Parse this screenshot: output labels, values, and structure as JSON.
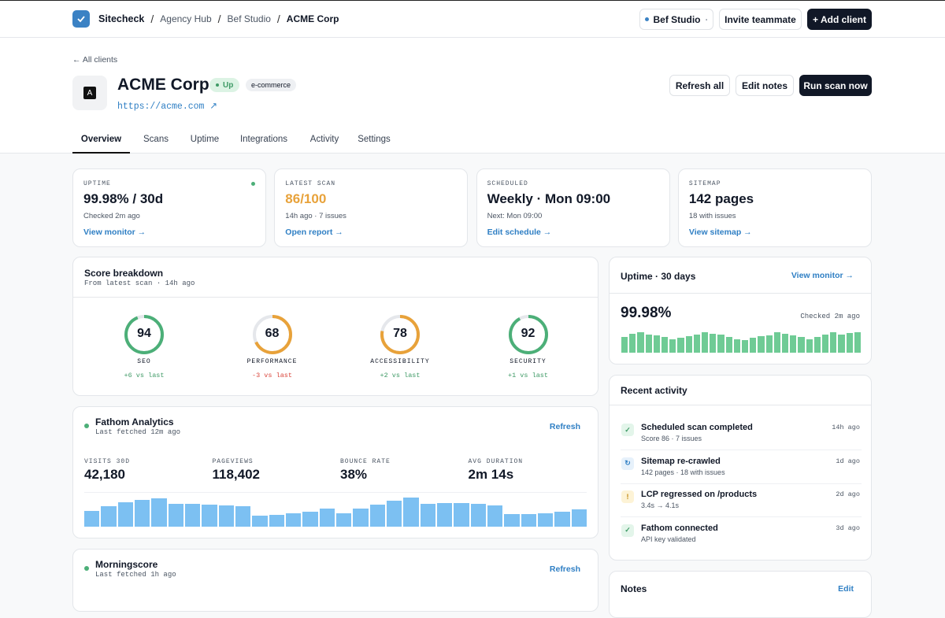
{
  "nav": {
    "brand": "Sitecheck",
    "separator": "/",
    "breadcrumbs": [
      "Agency Hub",
      "Bef Studio",
      "ACME Corp"
    ],
    "workspace": "Bef Studio",
    "workspace_caret": "·",
    "invite": "Invite teammate",
    "add_client": "+ Add client"
  },
  "back_link": "← All clients",
  "client": {
    "logo": "A",
    "name": "ACME Corp",
    "status": "Up",
    "tag": "e-commerce",
    "url": "https://acme.com ↗",
    "actions": [
      "Refresh all",
      "Edit notes",
      "Run scan now"
    ]
  },
  "tabs": {
    "items": [
      "Overview",
      "Scans",
      "Uptime",
      "Integrations",
      "Activity",
      "Settings"
    ],
    "active": 0
  },
  "stat_cards": [
    {
      "label": "UPTIME",
      "value": "99.98% / 30d",
      "sub": "Checked 2m ago",
      "link": "View monitor →",
      "color": "#111827",
      "dot": true
    },
    {
      "label": "LATEST SCAN",
      "value": "86/100",
      "sub": "14h ago · 7 issues",
      "link": "Open report →",
      "color": "#e8a23a",
      "dot": false
    },
    {
      "label": "SCHEDULED",
      "value": "Weekly · Mon 09:00",
      "sub": "Next: Mon 09:00",
      "link": "Edit schedule →",
      "color": "#111827",
      "dot": false
    },
    {
      "label": "SITEMAP",
      "value": "142 pages",
      "sub": "18 with issues",
      "link": "View sitemap →",
      "color": "#111827",
      "dot": false
    }
  ],
  "score_breakdown": {
    "title": "Score breakdown",
    "subtitle": "From latest scan · 14h ago",
    "scale": [
      0,
      100
    ],
    "scores": [
      {
        "value": 94,
        "label": "SEO",
        "delta": "+6 vs last",
        "color": "#4caf78",
        "delta_color": "#3f9a66"
      },
      {
        "value": 68,
        "label": "PERFORMANCE",
        "delta": "-3 vs last",
        "color": "#e8a23a",
        "delta_color": "#d9453b"
      },
      {
        "value": 78,
        "label": "ACCESSIBILITY",
        "delta": "+2 vs last",
        "color": "#e8a23a",
        "delta_color": "#3f9a66"
      },
      {
        "value": 92,
        "label": "SECURITY",
        "delta": "+1 vs last",
        "color": "#4caf78",
        "delta_color": "#3f9a66"
      }
    ]
  },
  "fathom": {
    "name": "Fathom Analytics",
    "fetched": "Last fetched 12m ago",
    "refresh": "Refresh",
    "metrics": [
      {
        "label": "VISITS 30D",
        "value": "42,180"
      },
      {
        "label": "PAGEVIEWS",
        "value": "118,402"
      },
      {
        "label": "BOUNCE RATE",
        "value": "38%"
      },
      {
        "label": "AVG DURATION",
        "value": "2m 14s"
      }
    ],
    "bars": [
      20,
      26,
      31,
      34,
      36,
      29,
      29,
      28,
      27,
      26,
      14,
      15,
      17,
      19,
      23,
      17,
      23,
      28,
      33,
      37,
      29,
      30,
      30,
      29,
      27,
      16,
      16,
      17,
      19,
      22
    ],
    "bars_ylim": [
      0,
      40
    ],
    "bar_color": "#7cc0f2"
  },
  "morningscore": {
    "name": "Morningscore",
    "fetched": "Last fetched 1h ago",
    "refresh": "Refresh"
  },
  "uptime": {
    "title": "Uptime · 30 days",
    "link": "View monitor →",
    "value": "99.98%",
    "checked": "Checked 2m ago",
    "bars": [
      20,
      24,
      26,
      23,
      22,
      20,
      17,
      19,
      21,
      23,
      26,
      24,
      23,
      20,
      17,
      16,
      19,
      21,
      22,
      26,
      24,
      22,
      20,
      17,
      20,
      23,
      26,
      23,
      25,
      26
    ],
    "bars_ylim": [
      0,
      28
    ],
    "bar_color": "#6fcb95"
  },
  "activity": {
    "title": "Recent activity",
    "items": [
      {
        "icon": "✓",
        "icon_bg": "#e3f5ea",
        "icon_color": "#3f9a66",
        "title": "Scheduled scan completed",
        "sub": "Score 86 · 7 issues",
        "time": "14h ago"
      },
      {
        "icon": "↻",
        "icon_bg": "#e6f1fb",
        "icon_color": "#2f7fc4",
        "title": "Sitemap re-crawled",
        "sub": "142 pages · 18 with issues",
        "time": "1d ago"
      },
      {
        "icon": "!",
        "icon_bg": "#fdf3d6",
        "icon_color": "#c28a12",
        "title": "LCP regressed on /products",
        "sub": "3.4s → 4.1s",
        "time": "2d ago"
      },
      {
        "icon": "✓",
        "icon_bg": "#e3f5ea",
        "icon_color": "#3f9a66",
        "title": "Fathom connected",
        "sub": "API key validated",
        "time": "3d ago"
      }
    ]
  },
  "notes": {
    "title": "Notes",
    "edit": "Edit"
  }
}
